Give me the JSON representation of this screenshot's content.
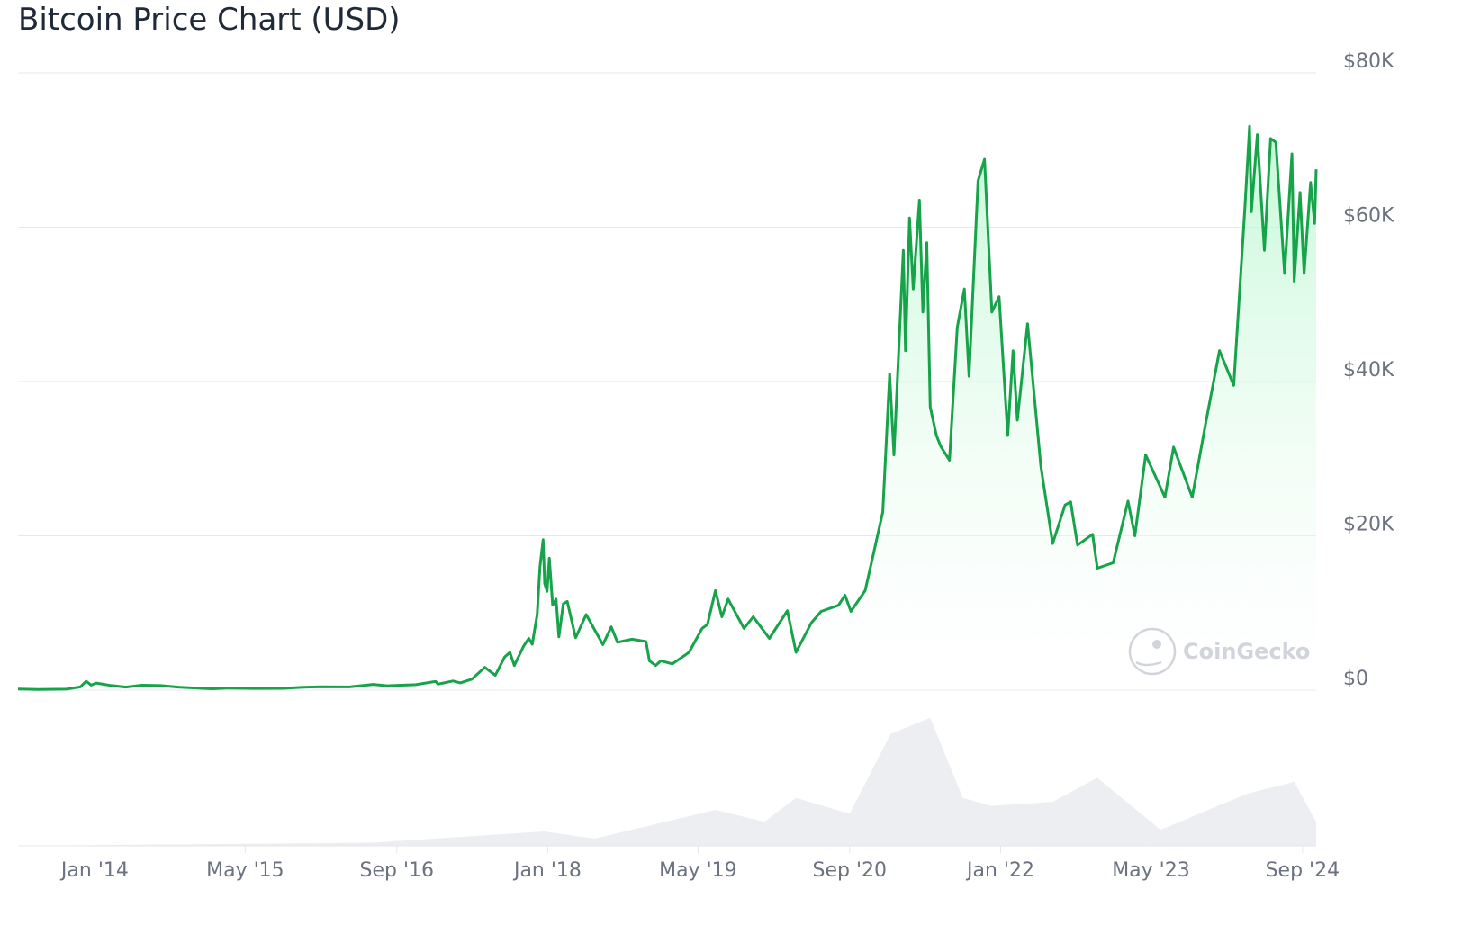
{
  "chart_data": {
    "type": "area",
    "title": "Bitcoin Price Chart (USD)",
    "xlabel": "",
    "ylabel": "",
    "currency": "USD",
    "ylim": [
      0,
      80000
    ],
    "xlim": [
      "2013-04-28",
      "2024-10-15"
    ],
    "y_ticks": [
      {
        "value": 0,
        "label": "$0"
      },
      {
        "value": 20000,
        "label": "$20K"
      },
      {
        "value": 40000,
        "label": "$40K"
      },
      {
        "value": 60000,
        "label": "$60K"
      },
      {
        "value": 80000,
        "label": "$80K"
      }
    ],
    "x_ticks": [
      {
        "date": "2014-01-01",
        "label": "Jan '14"
      },
      {
        "date": "2015-05-01",
        "label": "May '15"
      },
      {
        "date": "2016-09-01",
        "label": "Sep '16"
      },
      {
        "date": "2018-01-01",
        "label": "Jan '18"
      },
      {
        "date": "2019-05-01",
        "label": "May '19"
      },
      {
        "date": "2020-09-01",
        "label": "Sep '20"
      },
      {
        "date": "2022-01-01",
        "label": "Jan '22"
      },
      {
        "date": "2023-05-01",
        "label": "May '23"
      },
      {
        "date": "2024-09-01",
        "label": "Sep '24"
      }
    ],
    "grid": true,
    "legend": "none",
    "colors": {
      "line": "#16a34a",
      "fill_top": "#bbf7d0",
      "grid": "#e5e7eb",
      "volume": "#e5e7eb",
      "tick": "#6b7280",
      "title": "#1f2937",
      "watermark": "#d1d5db"
    },
    "series": [
      {
        "name": "",
        "points": [
          [
            "2013-04-28",
            135
          ],
          [
            "2013-07-01",
            90
          ],
          [
            "2013-10-01",
            125
          ],
          [
            "2013-11-15",
            420
          ],
          [
            "2013-12-04",
            1150
          ],
          [
            "2013-12-20",
            650
          ],
          [
            "2014-01-05",
            920
          ],
          [
            "2014-02-20",
            620
          ],
          [
            "2014-04-10",
            400
          ],
          [
            "2014-06-01",
            640
          ],
          [
            "2014-08-01",
            590
          ],
          [
            "2014-10-01",
            380
          ],
          [
            "2015-01-15",
            180
          ],
          [
            "2015-03-01",
            270
          ],
          [
            "2015-06-01",
            225
          ],
          [
            "2015-09-01",
            235
          ],
          [
            "2015-11-05",
            390
          ],
          [
            "2016-01-01",
            430
          ],
          [
            "2016-04-01",
            420
          ],
          [
            "2016-06-17",
            750
          ],
          [
            "2016-08-01",
            575
          ],
          [
            "2016-11-01",
            710
          ],
          [
            "2017-01-04",
            1130
          ],
          [
            "2017-01-12",
            780
          ],
          [
            "2017-03-01",
            1190
          ],
          [
            "2017-03-25",
            940
          ],
          [
            "2017-05-01",
            1420
          ],
          [
            "2017-06-12",
            2950
          ],
          [
            "2017-07-16",
            1930
          ],
          [
            "2017-08-15",
            4300
          ],
          [
            "2017-09-01",
            4900
          ],
          [
            "2017-09-15",
            3200
          ],
          [
            "2017-10-15",
            5700
          ],
          [
            "2017-11-01",
            6700
          ],
          [
            "2017-11-12",
            5950
          ],
          [
            "2017-11-28",
            9800
          ],
          [
            "2017-12-07",
            16000
          ],
          [
            "2017-12-17",
            19500
          ],
          [
            "2017-12-22",
            13800
          ],
          [
            "2017-12-30",
            12800
          ],
          [
            "2018-01-06",
            17100
          ],
          [
            "2018-01-17",
            11000
          ],
          [
            "2018-01-28",
            11800
          ],
          [
            "2018-02-06",
            6900
          ],
          [
            "2018-02-20",
            11200
          ],
          [
            "2018-03-05",
            11500
          ],
          [
            "2018-04-01",
            6800
          ],
          [
            "2018-05-05",
            9800
          ],
          [
            "2018-06-28",
            5900
          ],
          [
            "2018-07-25",
            8200
          ],
          [
            "2018-08-14",
            6200
          ],
          [
            "2018-09-30",
            6600
          ],
          [
            "2018-11-14",
            6300
          ],
          [
            "2018-11-25",
            3800
          ],
          [
            "2018-12-15",
            3200
          ],
          [
            "2019-01-01",
            3800
          ],
          [
            "2019-02-07",
            3400
          ],
          [
            "2019-04-02",
            4900
          ],
          [
            "2019-05-14",
            8000
          ],
          [
            "2019-05-31",
            8500
          ],
          [
            "2019-06-26",
            12900
          ],
          [
            "2019-07-17",
            9500
          ],
          [
            "2019-08-06",
            11800
          ],
          [
            "2019-09-26",
            8000
          ],
          [
            "2019-10-26",
            9500
          ],
          [
            "2019-12-17",
            6700
          ],
          [
            "2020-02-13",
            10300
          ],
          [
            "2020-03-12",
            4900
          ],
          [
            "2020-04-30",
            8700
          ],
          [
            "2020-06-01",
            10200
          ],
          [
            "2020-07-27",
            11000
          ],
          [
            "2020-08-17",
            12300
          ],
          [
            "2020-09-05",
            10200
          ],
          [
            "2020-10-21",
            12900
          ],
          [
            "2020-11-17",
            17700
          ],
          [
            "2020-12-17",
            23100
          ],
          [
            "2021-01-08",
            41000
          ],
          [
            "2021-01-22",
            30500
          ],
          [
            "2021-02-21",
            57000
          ],
          [
            "2021-02-28",
            44000
          ],
          [
            "2021-03-13",
            61200
          ],
          [
            "2021-03-25",
            52000
          ],
          [
            "2021-04-14",
            63500
          ],
          [
            "2021-04-25",
            49000
          ],
          [
            "2021-05-08",
            58000
          ],
          [
            "2021-05-19",
            36700
          ],
          [
            "2021-06-08",
            33000
          ],
          [
            "2021-06-22",
            31600
          ],
          [
            "2021-07-20",
            29800
          ],
          [
            "2021-08-14",
            47000
          ],
          [
            "2021-09-06",
            52000
          ],
          [
            "2021-09-21",
            40700
          ],
          [
            "2021-10-20",
            66000
          ],
          [
            "2021-11-10",
            68800
          ],
          [
            "2021-12-04",
            49000
          ],
          [
            "2021-12-27",
            51000
          ],
          [
            "2022-01-24",
            33000
          ],
          [
            "2022-02-10",
            44000
          ],
          [
            "2022-02-24",
            35000
          ],
          [
            "2022-03-29",
            47500
          ],
          [
            "2022-05-11",
            29000
          ],
          [
            "2022-06-18",
            19000
          ],
          [
            "2022-07-28",
            24000
          ],
          [
            "2022-08-15",
            24400
          ],
          [
            "2022-09-06",
            18800
          ],
          [
            "2022-10-25",
            20200
          ],
          [
            "2022-11-09",
            15800
          ],
          [
            "2022-12-30",
            16500
          ],
          [
            "2023-02-16",
            24500
          ],
          [
            "2023-03-10",
            20000
          ],
          [
            "2023-04-14",
            30500
          ],
          [
            "2023-06-15",
            25000
          ],
          [
            "2023-07-13",
            31500
          ],
          [
            "2023-09-11",
            25000
          ],
          [
            "2023-10-24",
            34500
          ],
          [
            "2023-12-08",
            44000
          ],
          [
            "2024-01-23",
            39500
          ],
          [
            "2024-02-28",
            62500
          ],
          [
            "2024-03-14",
            73100
          ],
          [
            "2024-03-20",
            62000
          ],
          [
            "2024-04-08",
            72000
          ],
          [
            "2024-05-01",
            57000
          ],
          [
            "2024-05-21",
            71500
          ],
          [
            "2024-06-07",
            71000
          ],
          [
            "2024-07-05",
            54000
          ],
          [
            "2024-07-29",
            69500
          ],
          [
            "2024-08-05",
            53000
          ],
          [
            "2024-08-24",
            64500
          ],
          [
            "2024-09-06",
            54000
          ],
          [
            "2024-09-27",
            65800
          ],
          [
            "2024-10-10",
            60500
          ],
          [
            "2024-10-15",
            67500
          ]
        ]
      }
    ],
    "volume": {
      "description_free": true,
      "points": [
        [
          "2013-04-28",
          0
        ],
        [
          "2016-06-17",
          0.4
        ],
        [
          "2017-12-20",
          1.8
        ],
        [
          "2018-06-01",
          0.9
        ],
        [
          "2019-06-26",
          4.5
        ],
        [
          "2019-12-01",
          3.0
        ],
        [
          "2020-03-12",
          6.0
        ],
        [
          "2020-09-01",
          4.0
        ],
        [
          "2021-01-11",
          14.0
        ],
        [
          "2021-05-19",
          16.0
        ],
        [
          "2021-09-01",
          6.0
        ],
        [
          "2021-12-01",
          5.0
        ],
        [
          "2022-06-18",
          5.5
        ],
        [
          "2022-11-09",
          8.5
        ],
        [
          "2023-06-01",
          2.0
        ],
        [
          "2024-03-05",
          6.5
        ],
        [
          "2024-08-05",
          8.0
        ],
        [
          "2024-10-15",
          3.0
        ]
      ],
      "ylim": [
        0,
        18
      ]
    },
    "watermark": "CoinGecko"
  }
}
